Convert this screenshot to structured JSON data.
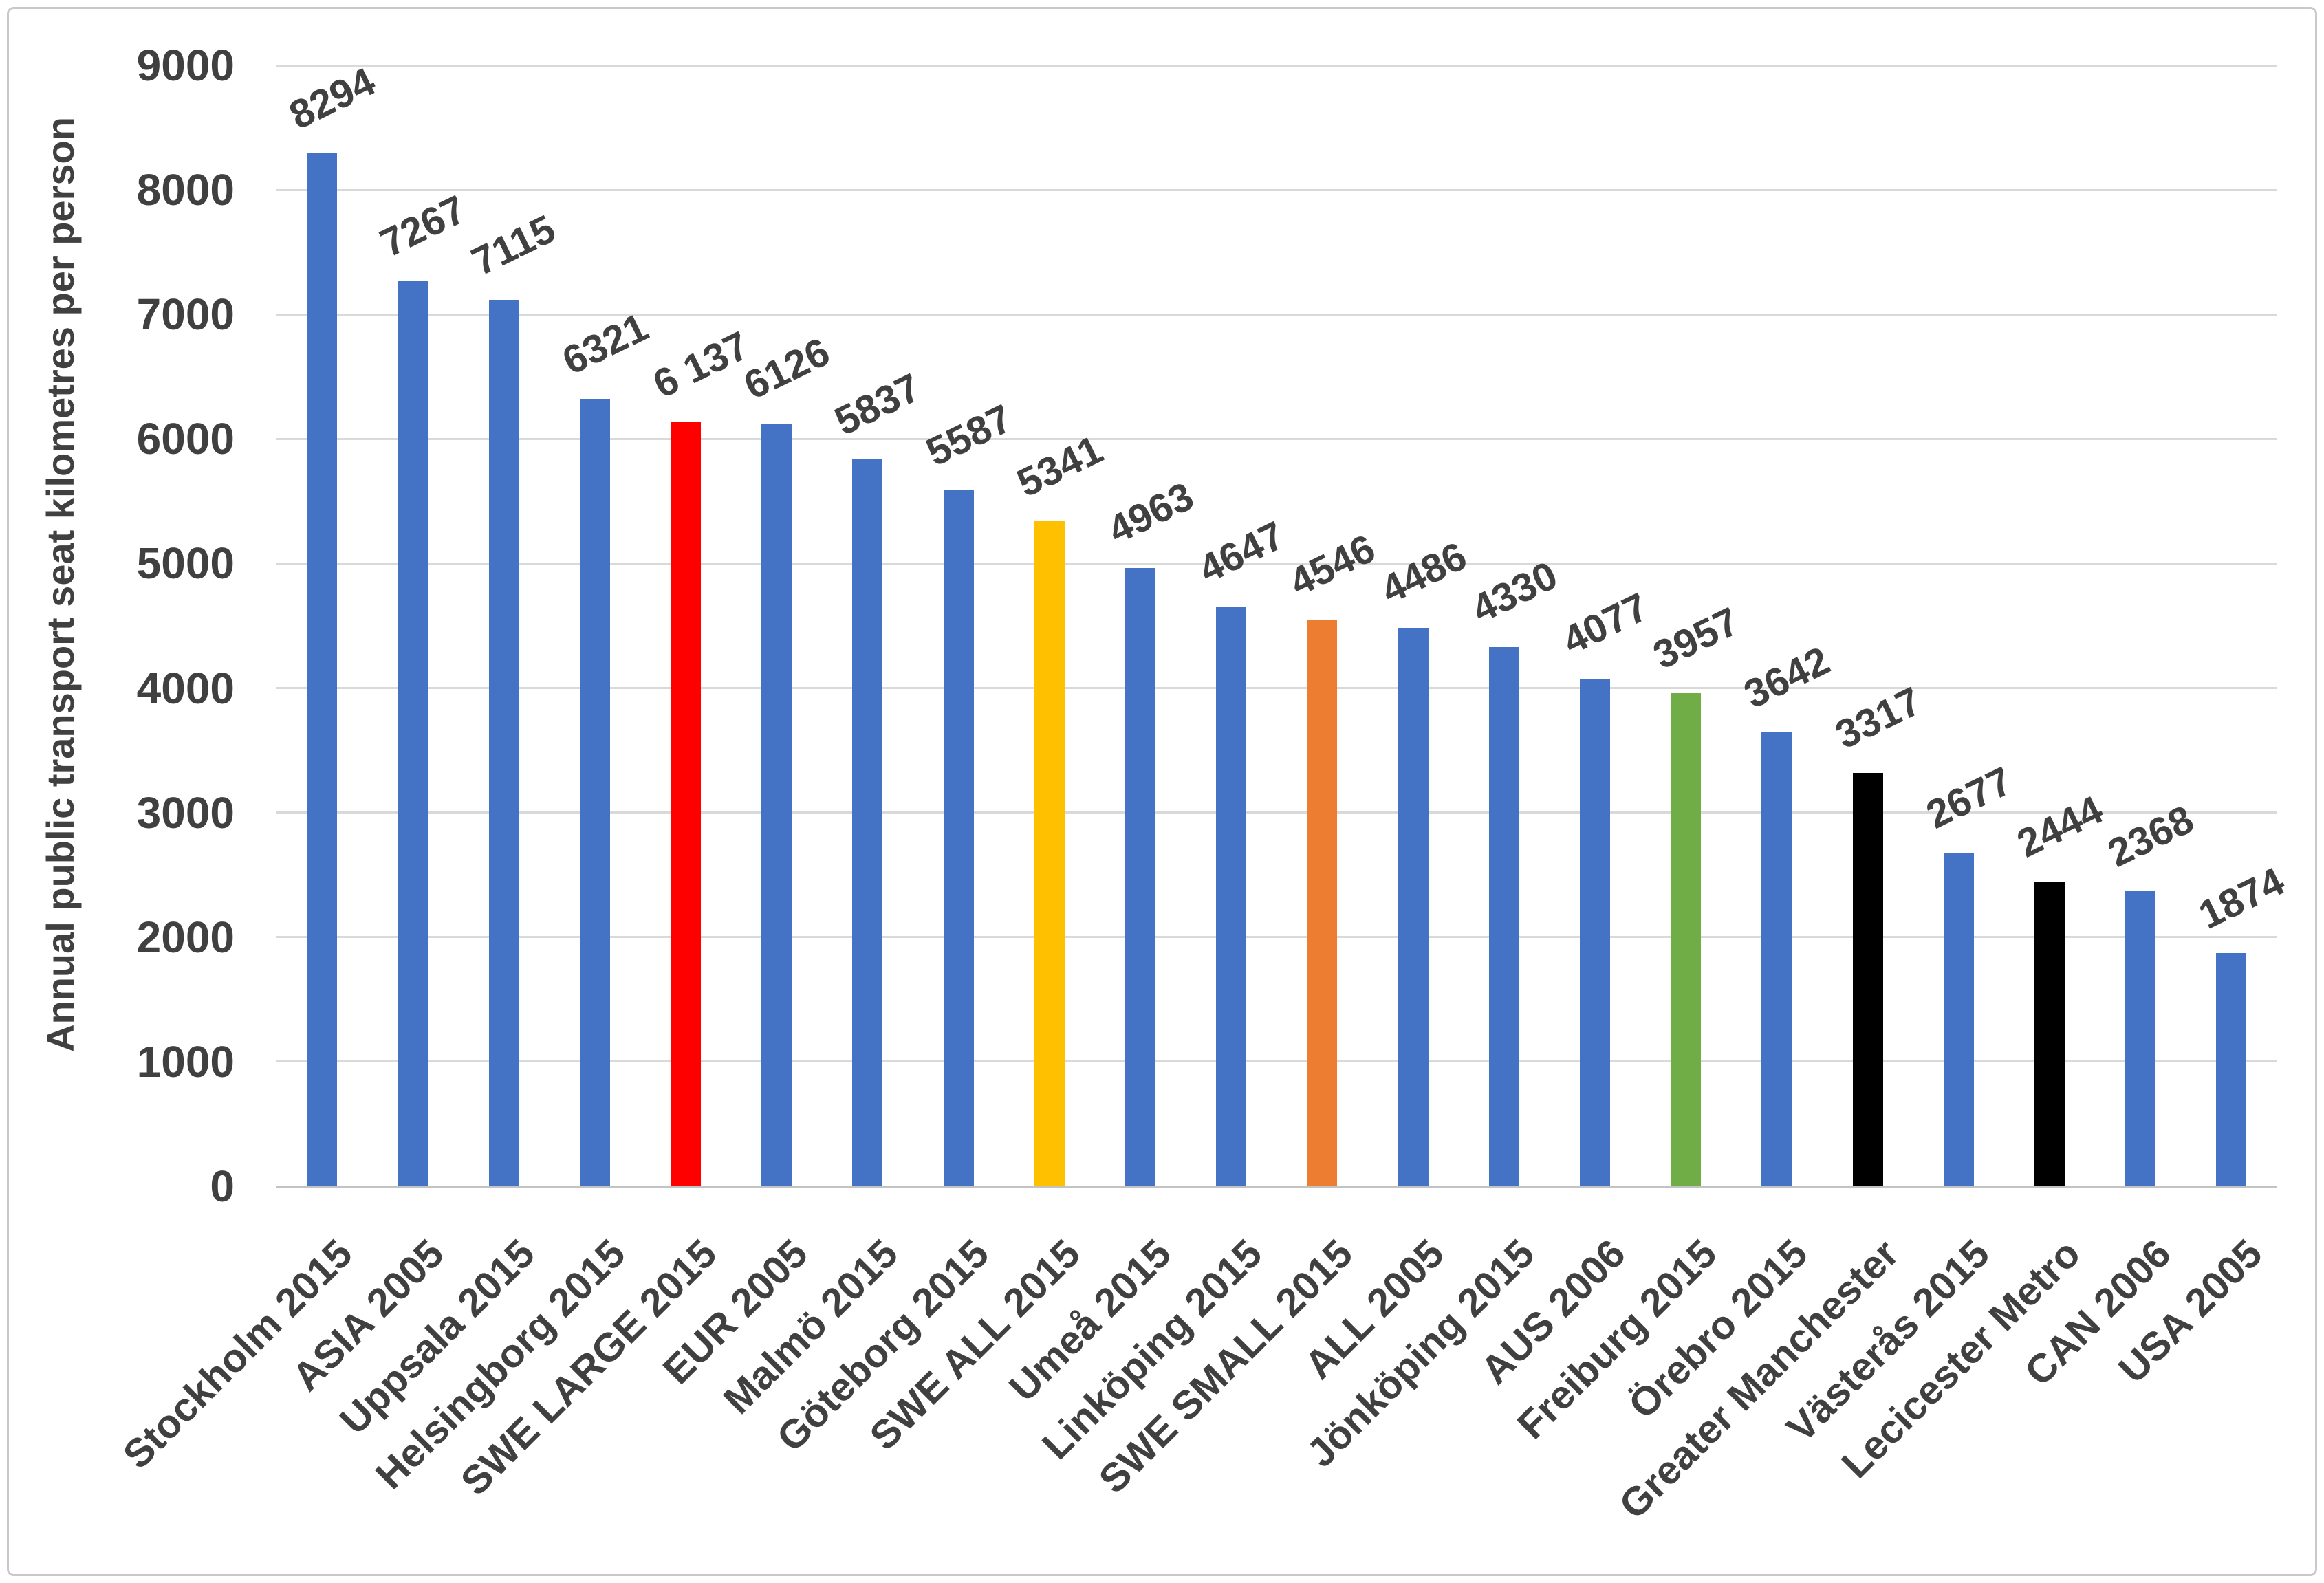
{
  "chart_data": {
    "type": "bar",
    "title": "",
    "xlabel": "",
    "ylabel": "Annual public transport seat kilometres per person",
    "ylim": [
      0,
      9000
    ],
    "ytick_step": 1000,
    "ytick_labels": [
      "0",
      "1000",
      "2000",
      "3000",
      "4000",
      "5000",
      "6000",
      "7000",
      "8000",
      "9000"
    ],
    "grid": true,
    "legend": false,
    "categories": [
      "Stockholm 2015",
      "ASIA 2005",
      "Uppsala 2015",
      "Helsingborg 2015",
      "SWE LARGE 2015",
      "EUR 2005",
      "Malmö 2015",
      "Göteborg 2015",
      "SWE ALL 2015",
      "Umeå 2015",
      "Linköping 2015",
      "SWE SMALL 2015",
      "ALL 2005",
      "Jönköping 2015",
      "AUS 2006",
      "Freiburg 2015",
      "Örebro 2015",
      "Greater Manchester",
      "Västerås 2015",
      "Lecicester Metro",
      "CAN 2006",
      "USA 2005"
    ],
    "values": [
      8294,
      7267,
      7115,
      6321,
      6137,
      6126,
      5837,
      5587,
      5341,
      4963,
      4647,
      4546,
      4486,
      4330,
      4077,
      3957,
      3642,
      3317,
      2677,
      2444,
      2368,
      1874
    ],
    "value_labels": [
      "8294",
      "7267",
      "7115",
      "6321",
      "6 137",
      "6126",
      "5837",
      "5587",
      "5341",
      "4963",
      "4647",
      "4546",
      "4486",
      "4330",
      "4077",
      "3957",
      "3642",
      "3317",
      "2677",
      "2444",
      "2368",
      "1874"
    ],
    "bar_colors": [
      "#4472C4",
      "#4472C4",
      "#4472C4",
      "#4472C4",
      "#FF0000",
      "#4472C4",
      "#4472C4",
      "#4472C4",
      "#FFC000",
      "#4472C4",
      "#4472C4",
      "#ED7D31",
      "#4472C4",
      "#4472C4",
      "#4472C4",
      "#70AD47",
      "#4472C4",
      "#000000",
      "#4472C4",
      "#000000",
      "#4472C4",
      "#4472C4"
    ],
    "style": {
      "default_bar_color": "#4472C4",
      "text_color": "#404040",
      "gridline_color": "#d9d9d9",
      "frame_border_color": "#c9c9c9",
      "background_color": "#ffffff"
    }
  }
}
